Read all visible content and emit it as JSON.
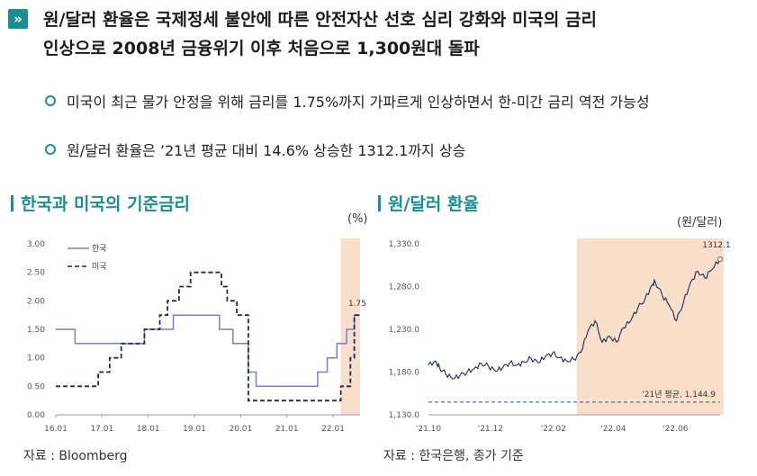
{
  "headline": {
    "line1": "원/달러 환율은 국제정세 불안에 따른 안전자산 선호 심리 강화와 미국의 금리",
    "line2": "인상으로 2008년 금융위기 이후 처음으로 1,300원대 돌파"
  },
  "bullets": [
    "미국이 최근 물가 안정을 위해 금리를 1.75%까지 가파르게 인상하면서 한-미간 금리 역전 가능성",
    "원/달러 환율은 ’21년 평균 대비 14.6% 상승한 1312.1까지 상승"
  ],
  "left_chart": {
    "title": "한국과 미국의 기준금리",
    "unit": "(%)",
    "source": "자료 : Bloomberg"
  },
  "right_chart": {
    "title": "원/달러 환율",
    "unit": "(원/달러)",
    "source": "자료 : 한국은행, 종가 기준"
  },
  "chart_data": [
    {
      "type": "line",
      "title": "한국과 미국의 기준금리",
      "ylabel": "(%)",
      "ylim": [
        0,
        3
      ],
      "yticks": [
        "0.00",
        "0.50",
        "1.00",
        "1.50",
        "2.00",
        "2.50",
        "3.00"
      ],
      "xlim": [
        0,
        79
      ],
      "xticks": [
        {
          "x": 0,
          "label": "16.01"
        },
        {
          "x": 12,
          "label": "17.01"
        },
        {
          "x": 24,
          "label": "18.01"
        },
        {
          "x": 36,
          "label": "19.01"
        },
        {
          "x": 48,
          "label": "20.01"
        },
        {
          "x": 60,
          "label": "21.01"
        },
        {
          "x": 72,
          "label": "22.01"
        }
      ],
      "highlight": [
        74,
        79
      ],
      "legend_position": "top-left",
      "end_label": "1.75",
      "series": [
        {
          "name": "한국",
          "color": "#7b7be0",
          "dash": "",
          "points": [
            [
              0,
              1.5
            ],
            [
              5,
              1.5
            ],
            [
              5,
              1.25
            ],
            [
              23,
              1.25
            ],
            [
              23,
              1.5
            ],
            [
              30.5,
              1.5
            ],
            [
              30.5,
              1.75
            ],
            [
              42.5,
              1.75
            ],
            [
              42.5,
              1.5
            ],
            [
              46,
              1.5
            ],
            [
              46,
              1.25
            ],
            [
              50,
              1.25
            ],
            [
              50,
              0.75
            ],
            [
              52,
              0.75
            ],
            [
              52,
              0.5
            ],
            [
              68,
              0.5
            ],
            [
              68,
              0.75
            ],
            [
              70.5,
              0.75
            ],
            [
              70.5,
              1.0
            ],
            [
              73,
              1.0
            ],
            [
              73,
              1.25
            ],
            [
              75.5,
              1.25
            ],
            [
              75.5,
              1.5
            ],
            [
              77.5,
              1.5
            ],
            [
              77.5,
              1.75
            ],
            [
              79,
              1.75
            ]
          ]
        },
        {
          "name": "미국",
          "color": "#1a2a5c",
          "dash": "5,3",
          "points": [
            [
              0,
              0.5
            ],
            [
              11,
              0.5
            ],
            [
              11,
              0.75
            ],
            [
              14,
              0.75
            ],
            [
              14,
              1.0
            ],
            [
              17,
              1.0
            ],
            [
              17,
              1.25
            ],
            [
              23,
              1.25
            ],
            [
              23,
              1.5
            ],
            [
              27,
              1.5
            ],
            [
              27,
              1.75
            ],
            [
              29,
              1.75
            ],
            [
              29,
              2.0
            ],
            [
              32,
              2.0
            ],
            [
              32,
              2.25
            ],
            [
              35,
              2.25
            ],
            [
              35,
              2.5
            ],
            [
              43,
              2.5
            ],
            [
              43,
              2.25
            ],
            [
              44.5,
              2.25
            ],
            [
              44.5,
              2.0
            ],
            [
              47,
              2.0
            ],
            [
              47,
              1.75
            ],
            [
              50,
              1.75
            ],
            [
              50,
              0.25
            ],
            [
              74,
              0.25
            ],
            [
              74,
              0.5
            ],
            [
              76.5,
              0.5
            ],
            [
              76.5,
              1.0
            ],
            [
              77.5,
              1.0
            ],
            [
              77.5,
              1.75
            ],
            [
              79,
              1.75
            ]
          ]
        }
      ]
    },
    {
      "type": "line",
      "title": "원/달러 환율",
      "ylabel": "(원/달러)",
      "ylim": [
        1130,
        1330
      ],
      "yticks": [
        "1,130.0",
        "1,180.0",
        "1,230.0",
        "1,280.0",
        "1,330.0"
      ],
      "xticks": [
        {
          "x": "2021-10-01",
          "label": "'21.10"
        },
        {
          "x": "2021-12-01",
          "label": "'21.12"
        },
        {
          "x": "2022-02-01",
          "label": "'22.02"
        },
        {
          "x": "2022-04-01",
          "label": "'22.04"
        },
        {
          "x": "2022-06-01",
          "label": "'22.06"
        }
      ],
      "xlim": [
        "2021-10-01",
        "2022-07-15"
      ],
      "highlight": [
        "2022-02-24",
        "2022-07-15"
      ],
      "reference_line": {
        "value": 1144.9,
        "label": "'21년 평균, 1,144.9"
      },
      "end_label": "1312.1",
      "series": [
        {
          "color": "#1a2a5c",
          "points": [
            [
              "2021-10-01",
              1188
            ],
            [
              "2021-10-08",
              1193
            ],
            [
              "2021-10-12",
              1185
            ],
            [
              "2021-10-18",
              1178
            ],
            [
              "2021-10-25",
              1172
            ],
            [
              "2021-11-01",
              1176
            ],
            [
              "2021-11-08",
              1180
            ],
            [
              "2021-11-15",
              1184
            ],
            [
              "2021-11-22",
              1190
            ],
            [
              "2021-11-29",
              1187
            ],
            [
              "2021-12-06",
              1181
            ],
            [
              "2021-12-13",
              1185
            ],
            [
              "2021-12-20",
              1191
            ],
            [
              "2021-12-27",
              1188
            ],
            [
              "2022-01-03",
              1192
            ],
            [
              "2022-01-10",
              1196
            ],
            [
              "2022-01-17",
              1191
            ],
            [
              "2022-01-24",
              1198
            ],
            [
              "2022-01-31",
              1202
            ],
            [
              "2022-02-07",
              1197
            ],
            [
              "2022-02-14",
              1193
            ],
            [
              "2022-02-21",
              1195
            ],
            [
              "2022-02-28",
              1203
            ],
            [
              "2022-03-07",
              1228
            ],
            [
              "2022-03-14",
              1240
            ],
            [
              "2022-03-21",
              1215
            ],
            [
              "2022-03-28",
              1222
            ],
            [
              "2022-04-04",
              1215
            ],
            [
              "2022-04-11",
              1232
            ],
            [
              "2022-04-18",
              1240
            ],
            [
              "2022-04-25",
              1255
            ],
            [
              "2022-05-02",
              1265
            ],
            [
              "2022-05-09",
              1282
            ],
            [
              "2022-05-12",
              1286
            ],
            [
              "2022-05-19",
              1270
            ],
            [
              "2022-05-26",
              1258
            ],
            [
              "2022-06-02",
              1240
            ],
            [
              "2022-06-09",
              1262
            ],
            [
              "2022-06-16",
              1285
            ],
            [
              "2022-06-23",
              1298
            ],
            [
              "2022-06-30",
              1290
            ],
            [
              "2022-07-07",
              1300
            ],
            [
              "2022-07-15",
              1312.1
            ]
          ]
        }
      ]
    }
  ]
}
